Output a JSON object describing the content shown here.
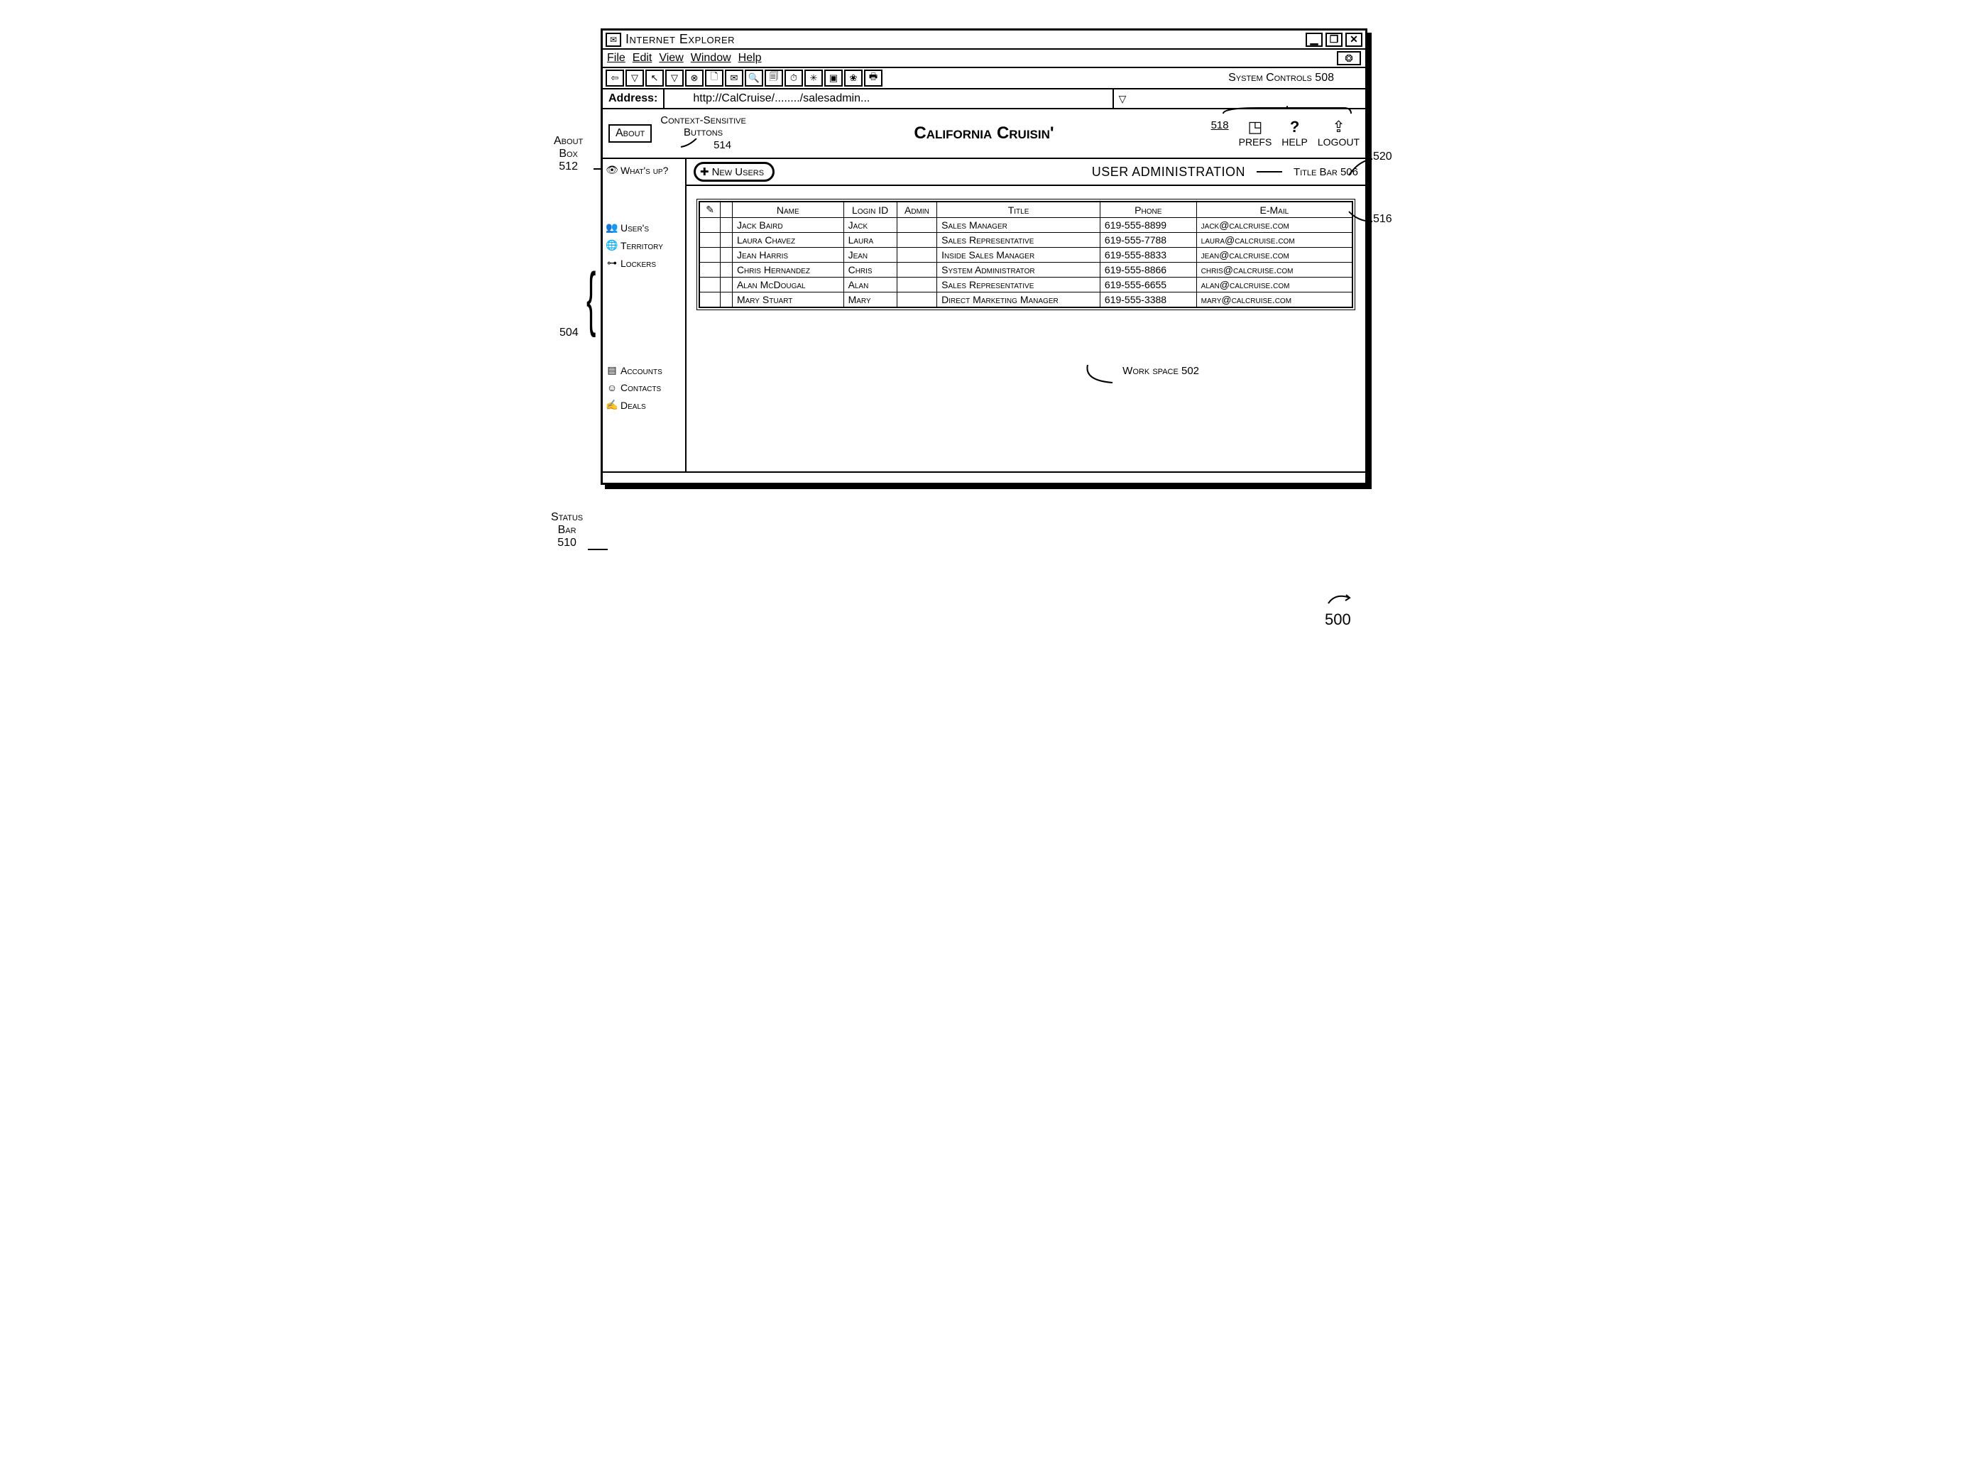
{
  "window": {
    "app_title": "Internet Explorer",
    "app_icon_glyph": "✉",
    "minimize": "▁",
    "maximize": "❐",
    "close": "✕"
  },
  "menubar": {
    "file": "File",
    "edit": "Edit",
    "view": "View",
    "window": "Window",
    "help": "Help",
    "globe_glyph": "❂"
  },
  "toolbar": {
    "btn_glyphs": [
      "⇦",
      "▽",
      "↖",
      "▽",
      "⊗",
      "🗋",
      "✉",
      "🔍",
      "🗐",
      "⏱",
      "✳",
      "▣",
      "❀",
      "🖶"
    ],
    "right_label": "System Controls  508"
  },
  "addressbar": {
    "label": "Address:",
    "url": "http://CalCruise/......../salesadmin...",
    "drop_glyph": "▽"
  },
  "app_header": {
    "about": "About",
    "context_label_line1": "Context-Sensitive",
    "context_label_line2": "Buttons",
    "context_ref": "514",
    "brand": "California Cruisin'",
    "prefs": {
      "icon": "◳",
      "label": "PREFS",
      "ref": "518"
    },
    "help": {
      "icon": "?",
      "label": "HELP"
    },
    "logout": {
      "icon": "⇪",
      "label": "LOGOUT",
      "ref": "520"
    }
  },
  "sidebar": {
    "whatsup": {
      "icon": "👁",
      "label": "What's up?"
    },
    "users": {
      "icon": "👥",
      "label": "User's"
    },
    "territory": {
      "icon": "🌐",
      "label": "Territory"
    },
    "lockers": {
      "icon": "⊶",
      "label": "Lockers"
    },
    "accounts": {
      "icon": "▤",
      "label": "Accounts"
    },
    "contacts": {
      "icon": "☺",
      "label": "Contacts"
    },
    "deals": {
      "icon": "✍",
      "label": "Deals"
    }
  },
  "workspace": {
    "new_users_btn": {
      "plus": "✚",
      "label": "New Users"
    },
    "title": "USER ADMINISTRATION",
    "title_bar_note": "Title Bar  506",
    "workspace_note": "Work space  502",
    "table": {
      "edit_icon": "✎",
      "columns": [
        "Name",
        "Login ID",
        "Admin",
        "Title",
        "Phone",
        "E-Mail"
      ],
      "rows": [
        {
          "name": "Jack Baird",
          "login": "Jack",
          "admin": "",
          "title": "Sales Manager",
          "phone": "619-555-8899",
          "email": "jack@calcruise.com"
        },
        {
          "name": "Laura Chavez",
          "login": "Laura",
          "admin": "",
          "title": "Sales Representative",
          "phone": "619-555-7788",
          "email": "laura@calcruise.com"
        },
        {
          "name": "Jean Harris",
          "login": "Jean",
          "admin": "",
          "title": "Inside Sales Manager",
          "phone": "619-555-8833",
          "email": "jean@calcruise.com"
        },
        {
          "name": "Chris Hernandez",
          "login": "Chris",
          "admin": "",
          "title": "System Administrator",
          "phone": "619-555-8866",
          "email": "chris@calcruise.com"
        },
        {
          "name": "Alan McDougal",
          "login": "Alan",
          "admin": "",
          "title": "Sales Representative",
          "phone": "619-555-6655",
          "email": "alan@calcruise.com"
        },
        {
          "name": "Mary Stuart",
          "login": "Mary",
          "admin": "",
          "title": "Direct Marketing Manager",
          "phone": "619-555-3388",
          "email": "mary@calcruise.com"
        }
      ]
    }
  },
  "callouts": {
    "about_box": "About\nBox\n512",
    "status_bar": "Status\nBar\n510",
    "sidebar_ref": "504",
    "right_516": "516",
    "fig_500": "500"
  },
  "style": {
    "border_color": "#000000",
    "background": "#ffffff",
    "font_family": "Arial",
    "small_caps": true
  }
}
